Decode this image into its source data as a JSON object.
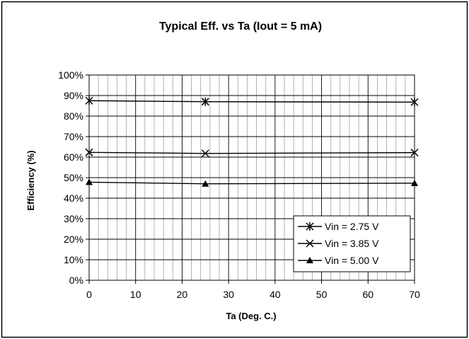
{
  "chart_data": {
    "type": "line",
    "title": "Typical Eff. vs Ta (Iout = 5 mA)",
    "xlabel": "Ta (Deg. C.)",
    "ylabel": "Efficiency (%)",
    "xlim": [
      0,
      70
    ],
    "ylim": [
      0,
      100
    ],
    "x_ticks": [
      "0",
      "10",
      "20",
      "30",
      "40",
      "50",
      "60",
      "70"
    ],
    "y_ticks": [
      "0%",
      "10%",
      "20%",
      "30%",
      "40%",
      "50%",
      "60%",
      "70%",
      "80%",
      "90%",
      "100%"
    ],
    "grid": true,
    "legend_position": "bottom-right",
    "series": [
      {
        "name": "Vin = 2.75 V",
        "marker": "asterisk",
        "x": [
          0,
          25,
          70
        ],
        "values": [
          87.5,
          87,
          86.8
        ]
      },
      {
        "name": "Vin = 3.85 V",
        "marker": "x",
        "x": [
          0,
          25,
          70
        ],
        "values": [
          62.3,
          61.8,
          62.2
        ]
      },
      {
        "name": "Vin = 5.00 V",
        "marker": "triangle",
        "x": [
          0,
          25,
          70
        ],
        "values": [
          47.8,
          47,
          47.3
        ]
      }
    ]
  }
}
